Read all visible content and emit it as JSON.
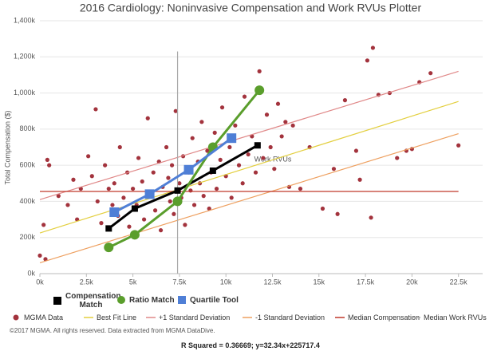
{
  "chart_data": {
    "type": "scatter",
    "title": "2016 Cardiology: Noninvasive Compensation and Work RVUs Plotter",
    "xlabel": "Work RVUs",
    "ylabel": "Total Compensation ($)",
    "xlim": [
      0,
      23800
    ],
    "ylim": [
      0,
      1400000
    ],
    "xticks": [
      {
        "value": 0,
        "label": "0k"
      },
      {
        "value": 2500,
        "label": "2.5k"
      },
      {
        "value": 5000,
        "label": "5k"
      },
      {
        "value": 7500,
        "label": "7.5k"
      },
      {
        "value": 10000,
        "label": "10k"
      },
      {
        "value": 12500,
        "label": "12.5k"
      },
      {
        "value": 15000,
        "label": "15k"
      },
      {
        "value": 17500,
        "label": "17.5k"
      },
      {
        "value": 20000,
        "label": "20k"
      },
      {
        "value": 22500,
        "label": "22.5k"
      }
    ],
    "yticks": [
      {
        "value": 0,
        "label": "0k"
      },
      {
        "value": 200000,
        "label": "200k"
      },
      {
        "value": 400000,
        "label": "400k"
      },
      {
        "value": 600000,
        "label": "600k"
      },
      {
        "value": 800000,
        "label": "800k"
      },
      {
        "value": 1000000,
        "label": "1,000k"
      },
      {
        "value": 1200000,
        "label": "1,200k"
      },
      {
        "value": 1400000,
        "label": "1,400k"
      }
    ],
    "grid": true,
    "legend": "bottom",
    "series": [
      {
        "name": "MGMA Data",
        "type": "scatter",
        "color": "#a3333d",
        "x": [
          0,
          300,
          200,
          500,
          400,
          1000,
          1500,
          1800,
          2000,
          2200,
          2600,
          2800,
          3000,
          3100,
          3300,
          3500,
          3700,
          3900,
          4000,
          4200,
          4300,
          4500,
          4700,
          4800,
          5000,
          5200,
          5300,
          5500,
          5600,
          5800,
          6000,
          6100,
          6200,
          6400,
          6500,
          6600,
          6800,
          6900,
          7000,
          7100,
          7200,
          7300,
          7500,
          7600,
          7700,
          7800,
          8000,
          8100,
          8200,
          8300,
          8500,
          8600,
          8700,
          8800,
          9000,
          9100,
          9200,
          9400,
          9500,
          9700,
          9800,
          10000,
          10200,
          10300,
          10500,
          10700,
          10900,
          11000,
          11200,
          11400,
          11600,
          11800,
          12000,
          12200,
          12400,
          12600,
          12800,
          13000,
          13200,
          13400,
          13600,
          14000,
          14500,
          15200,
          15800,
          16400,
          17000,
          17200,
          17600,
          17900,
          18200,
          18800,
          19200,
          19700,
          20000,
          20400,
          21000,
          22500,
          17800,
          16000
        ],
        "values": [
          100000,
          80000,
          270000,
          600000,
          630000,
          430000,
          380000,
          520000,
          300000,
          470000,
          650000,
          540000,
          910000,
          400000,
          280000,
          600000,
          470000,
          380000,
          500000,
          320000,
          700000,
          420000,
          560000,
          260000,
          470000,
          380000,
          640000,
          510000,
          300000,
          860000,
          450000,
          560000,
          350000,
          620000,
          240000,
          480000,
          700000,
          530000,
          400000,
          600000,
          330000,
          900000,
          500000,
          420000,
          650000,
          270000,
          560000,
          460000,
          750000,
          380000,
          620000,
          500000,
          840000,
          430000,
          680000,
          360000,
          560000,
          780000,
          470000,
          630000,
          920000,
          540000,
          700000,
          420000,
          820000,
          600000,
          500000,
          980000,
          660000,
          760000,
          560000,
          1120000,
          640000,
          880000,
          700000,
          580000,
          940000,
          760000,
          840000,
          480000,
          820000,
          470000,
          700000,
          360000,
          580000,
          960000,
          680000,
          520000,
          1180000,
          1250000,
          990000,
          1000000,
          640000,
          680000,
          690000,
          1060000,
          1110000,
          710000,
          310000,
          330000
        ]
      },
      {
        "name": "Best Fit Line",
        "type": "line",
        "color": "#e3cf3f",
        "x": [
          0,
          22500
        ],
        "values": [
          225000,
          953000
        ]
      },
      {
        "name": "+1 Standard Deviation",
        "type": "line",
        "color": "#e08888",
        "x": [
          0,
          22500
        ],
        "values": [
          410000,
          1120000
        ]
      },
      {
        "name": "-1 Standard Deviation",
        "type": "line",
        "color": "#eea060",
        "x": [
          0,
          22500
        ],
        "values": [
          60000,
          775000
        ]
      },
      {
        "name": "Median Compensation",
        "type": "line",
        "color": "#c0392b",
        "x": [
          0,
          22500
        ],
        "values": [
          455000,
          455000
        ]
      },
      {
        "name": "Median Work RVUs",
        "type": "line",
        "color": "#aaaaaa",
        "x": [
          7400,
          7400
        ],
        "values": [
          0,
          1230000
        ]
      },
      {
        "name": "Compensation Match",
        "type": "marker-line",
        "marker": "square",
        "color": "#000000",
        "x": [
          3700,
          5100,
          7400,
          9300,
          11700
        ],
        "values": [
          250000,
          360000,
          460000,
          570000,
          710000
        ]
      },
      {
        "name": "Ratio Match",
        "type": "marker-line",
        "marker": "circle",
        "color": "#5a9e2c",
        "x": [
          3700,
          5100,
          7400,
          9300,
          11800
        ],
        "values": [
          145000,
          215000,
          400000,
          700000,
          1015000
        ]
      },
      {
        "name": "Quartile Tool",
        "type": "marker-line",
        "marker": "square",
        "color": "#4f7fd6",
        "x": [
          4000,
          5900,
          8000,
          10300
        ],
        "values": [
          340000,
          440000,
          575000,
          750000
        ]
      }
    ],
    "annotations": [
      "©2017 MGMA. All rights reserved. Data extracted from MGMA DataDive.",
      "R Squared = 0.36669; y=32.34x+225717.4"
    ]
  }
}
